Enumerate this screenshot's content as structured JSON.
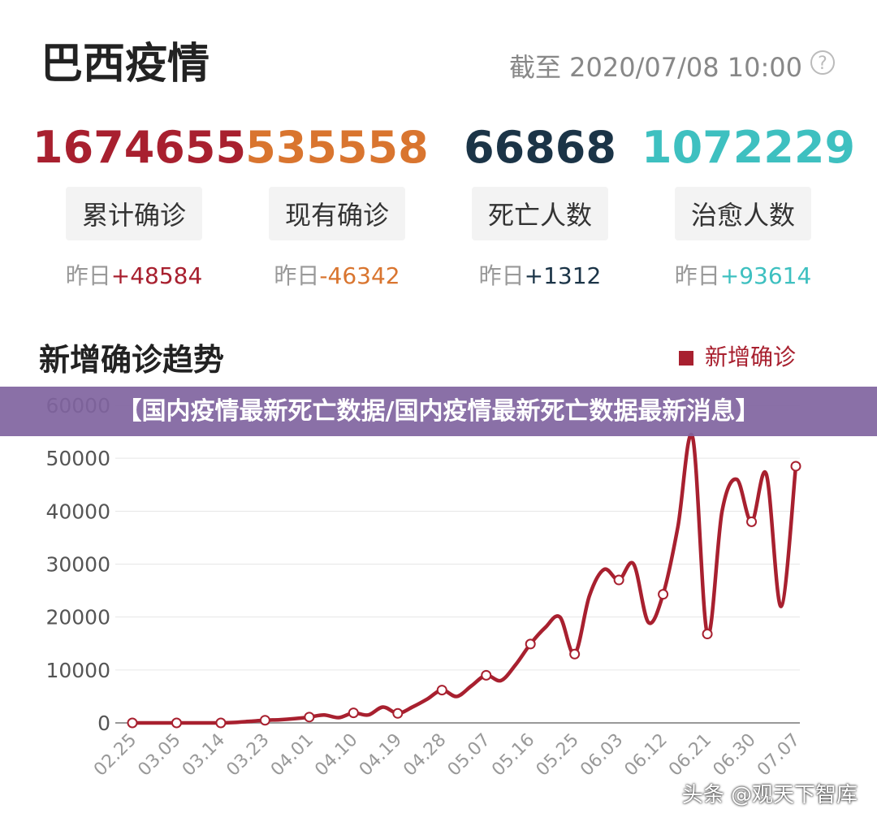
{
  "header": {
    "title": "巴西疫情",
    "as_of": "截至 2020/07/08 10:00"
  },
  "stats": [
    {
      "value": "1674655",
      "label": "累计确诊",
      "delta_prefix": "昨日",
      "delta": "+48584",
      "color": "#a8202f"
    },
    {
      "value": "535558",
      "label": "现有确诊",
      "delta_prefix": "昨日",
      "delta": "-46342",
      "color": "#d9752f"
    },
    {
      "value": "66868",
      "label": "死亡人数",
      "delta_prefix": "昨日",
      "delta": "+1312",
      "color": "#1b3447"
    },
    {
      "value": "1072229",
      "label": "治愈人数",
      "delta_prefix": "昨日",
      "delta": "+93614",
      "color": "#3ec0c0"
    }
  ],
  "banner": "【国内疫情最新死亡数据/国内疫情最新死亡数据最新消息】",
  "watermark": "头条 @观天下智库",
  "chart_data": {
    "type": "line",
    "title": "新增确诊趋势",
    "categories": [
      "02.25",
      null,
      null,
      "03.05",
      null,
      null,
      "03.14",
      null,
      null,
      "03.23",
      null,
      null,
      "04.01",
      null,
      null,
      "04.10",
      null,
      null,
      "04.19",
      null,
      null,
      "04.28",
      null,
      null,
      "05.07",
      null,
      null,
      "05.16",
      null,
      null,
      "05.25",
      null,
      null,
      "06.03",
      null,
      null,
      "06.12",
      null,
      null,
      "06.21",
      null,
      null,
      "06.30",
      null,
      null,
      "07.07"
    ],
    "series": [
      {
        "name": "新增确诊",
        "color": "#a8202f",
        "values": [
          0,
          0,
          0,
          0,
          0,
          0,
          0,
          100,
          300,
          500,
          600,
          800,
          1100,
          1500,
          1000,
          1900,
          1500,
          3000,
          1800,
          3000,
          4500,
          6200,
          5000,
          7000,
          9000,
          8000,
          11000,
          14900,
          18000,
          20000,
          13000,
          24000,
          29000,
          27000,
          30000,
          19000,
          24300,
          37000,
          54000,
          16800,
          40000,
          46000,
          38000,
          47000,
          22000,
          48500
        ]
      }
    ],
    "ylim": [
      0,
      60000
    ],
    "yticks": [
      0,
      10000,
      20000,
      30000,
      40000,
      50000,
      60000
    ],
    "grid": true,
    "legend": "top-right"
  }
}
